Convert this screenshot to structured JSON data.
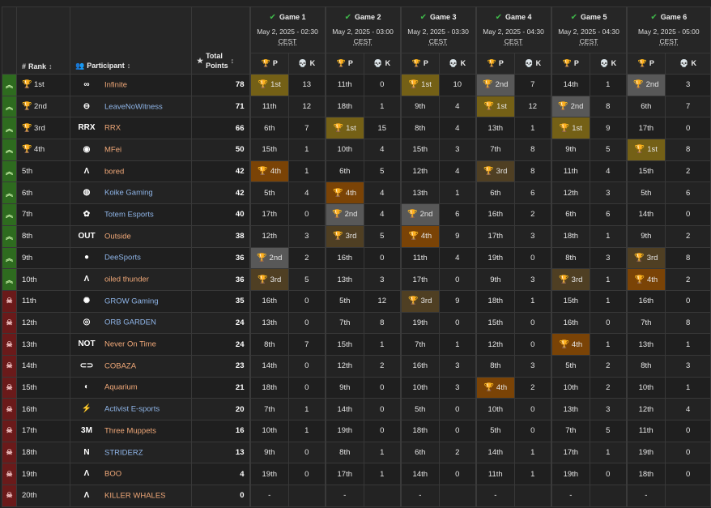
{
  "headers": {
    "rank": "Rank",
    "participant": "Participant",
    "total_points_1": "Total",
    "total_points_2": "Points",
    "p": "P",
    "k": "K"
  },
  "games": [
    {
      "title": "Game 1",
      "date": "May 2, 2025 - 02:30",
      "tz": "CEST"
    },
    {
      "title": "Game 2",
      "date": "May 2, 2025 - 03:00",
      "tz": "CEST"
    },
    {
      "title": "Game 3",
      "date": "May 2, 2025 - 03:30",
      "tz": "CEST"
    },
    {
      "title": "Game 4",
      "date": "May 2, 2025 - 04:30",
      "tz": "CEST"
    },
    {
      "title": "Game 5",
      "date": "May 2, 2025 - 04:30",
      "tz": "CEST"
    },
    {
      "title": "Game 6",
      "date": "May 2, 2025 - 05:00",
      "tz": "CEST"
    }
  ],
  "colors": {
    "gold": "#746016",
    "silver": "#585858",
    "bronze": "#4f3f23",
    "fourth": "#7a4306",
    "advance": "#2e6b1f",
    "eliminated": "#6a1a1a",
    "link_blue": "#8fb5e8",
    "name_orange": "#f0a878"
  },
  "rows": [
    {
      "status": "up",
      "rank": "1st",
      "rank_icon": "gold",
      "name": "Infinite",
      "name_color": "orange",
      "logo": "∞",
      "total": "78",
      "games": [
        [
          "1st",
          "13"
        ],
        [
          "11th",
          "0"
        ],
        [
          "1st",
          "10"
        ],
        [
          "2nd",
          "7"
        ],
        [
          "14th",
          "1"
        ],
        [
          "2nd",
          "3"
        ]
      ]
    },
    {
      "status": "up",
      "rank": "2nd",
      "rank_icon": "silver",
      "name": "LeaveNoWitness",
      "name_color": "blue",
      "logo": "⊖",
      "total": "71",
      "games": [
        [
          "11th",
          "12"
        ],
        [
          "18th",
          "1"
        ],
        [
          "9th",
          "4"
        ],
        [
          "1st",
          "12"
        ],
        [
          "2nd",
          "8"
        ],
        [
          "6th",
          "7"
        ]
      ]
    },
    {
      "status": "up",
      "rank": "3rd",
      "rank_icon": "bronze",
      "name": "RRX",
      "name_color": "orange",
      "logo": "RRX",
      "total": "66",
      "games": [
        [
          "6th",
          "7"
        ],
        [
          "1st",
          "15"
        ],
        [
          "8th",
          "4"
        ],
        [
          "13th",
          "1"
        ],
        [
          "1st",
          "9"
        ],
        [
          "17th",
          "0"
        ]
      ]
    },
    {
      "status": "up",
      "rank": "4th",
      "rank_icon": "fourth",
      "name": "MFei",
      "name_color": "orange",
      "logo": "◉",
      "total": "50",
      "games": [
        [
          "15th",
          "1"
        ],
        [
          "10th",
          "4"
        ],
        [
          "15th",
          "3"
        ],
        [
          "7th",
          "8"
        ],
        [
          "9th",
          "5"
        ],
        [
          "1st",
          "8"
        ]
      ]
    },
    {
      "status": "up",
      "rank": "5th",
      "rank_icon": "",
      "name": "bored",
      "name_color": "orange",
      "logo": "Λ",
      "total": "42",
      "games": [
        [
          "4th",
          "1"
        ],
        [
          "6th",
          "5"
        ],
        [
          "12th",
          "4"
        ],
        [
          "3rd",
          "8"
        ],
        [
          "11th",
          "4"
        ],
        [
          "15th",
          "2"
        ]
      ]
    },
    {
      "status": "up",
      "rank": "6th",
      "rank_icon": "",
      "name": "Koike Gaming",
      "name_color": "blue",
      "logo": "◍",
      "total": "42",
      "games": [
        [
          "5th",
          "4"
        ],
        [
          "4th",
          "4"
        ],
        [
          "13th",
          "1"
        ],
        [
          "6th",
          "6"
        ],
        [
          "12th",
          "3"
        ],
        [
          "5th",
          "6"
        ]
      ]
    },
    {
      "status": "up",
      "rank": "7th",
      "rank_icon": "",
      "name": "Totem Esports",
      "name_color": "blue",
      "logo": "✿",
      "total": "40",
      "games": [
        [
          "17th",
          "0"
        ],
        [
          "2nd",
          "4"
        ],
        [
          "2nd",
          "6"
        ],
        [
          "16th",
          "2"
        ],
        [
          "6th",
          "6"
        ],
        [
          "14th",
          "0"
        ]
      ]
    },
    {
      "status": "up",
      "rank": "8th",
      "rank_icon": "",
      "name": "Outside",
      "name_color": "orange",
      "logo": "OUT",
      "total": "38",
      "games": [
        [
          "12th",
          "3"
        ],
        [
          "3rd",
          "5"
        ],
        [
          "4th",
          "9"
        ],
        [
          "17th",
          "3"
        ],
        [
          "18th",
          "1"
        ],
        [
          "9th",
          "2"
        ]
      ]
    },
    {
      "status": "up",
      "rank": "9th",
      "rank_icon": "",
      "name": "DeeSports",
      "name_color": "blue",
      "logo": "●",
      "total": "36",
      "games": [
        [
          "2nd",
          "2"
        ],
        [
          "16th",
          "0"
        ],
        [
          "11th",
          "4"
        ],
        [
          "19th",
          "0"
        ],
        [
          "8th",
          "3"
        ],
        [
          "3rd",
          "8"
        ]
      ]
    },
    {
      "status": "up",
      "rank": "10th",
      "rank_icon": "",
      "name": "oiled thunder",
      "name_color": "orange",
      "logo": "Λ",
      "total": "36",
      "games": [
        [
          "3rd",
          "5"
        ],
        [
          "13th",
          "3"
        ],
        [
          "17th",
          "0"
        ],
        [
          "9th",
          "3"
        ],
        [
          "3rd",
          "1"
        ],
        [
          "4th",
          "2"
        ]
      ]
    },
    {
      "status": "down",
      "rank": "11th",
      "rank_icon": "",
      "name": "GROW Gaming",
      "name_color": "blue",
      "logo": "✺",
      "total": "35",
      "games": [
        [
          "16th",
          "0"
        ],
        [
          "5th",
          "12"
        ],
        [
          "3rd",
          "9"
        ],
        [
          "18th",
          "1"
        ],
        [
          "15th",
          "1"
        ],
        [
          "16th",
          "0"
        ]
      ]
    },
    {
      "status": "down",
      "rank": "12th",
      "rank_icon": "",
      "name": "ORB GARDEN",
      "name_color": "blue",
      "logo": "◎",
      "total": "24",
      "games": [
        [
          "13th",
          "0"
        ],
        [
          "7th",
          "8"
        ],
        [
          "19th",
          "0"
        ],
        [
          "15th",
          "0"
        ],
        [
          "16th",
          "0"
        ],
        [
          "7th",
          "8"
        ]
      ]
    },
    {
      "status": "down",
      "rank": "13th",
      "rank_icon": "",
      "name": "Never On Time",
      "name_color": "orange",
      "logo": "NOT",
      "total": "24",
      "games": [
        [
          "8th",
          "7"
        ],
        [
          "15th",
          "1"
        ],
        [
          "7th",
          "1"
        ],
        [
          "12th",
          "0"
        ],
        [
          "4th",
          "1"
        ],
        [
          "13th",
          "1"
        ]
      ]
    },
    {
      "status": "down",
      "rank": "14th",
      "rank_icon": "",
      "name": "COBAZA",
      "name_color": "orange",
      "logo": "⊂⊃",
      "total": "23",
      "games": [
        [
          "14th",
          "0"
        ],
        [
          "12th",
          "2"
        ],
        [
          "16th",
          "3"
        ],
        [
          "8th",
          "3"
        ],
        [
          "5th",
          "2"
        ],
        [
          "8th",
          "3"
        ]
      ]
    },
    {
      "status": "down",
      "rank": "15th",
      "rank_icon": "",
      "name": "Aquarium",
      "name_color": "orange",
      "logo": "◐",
      "total": "21",
      "games": [
        [
          "18th",
          "0"
        ],
        [
          "9th",
          "0"
        ],
        [
          "10th",
          "3"
        ],
        [
          "4th",
          "2"
        ],
        [
          "10th",
          "2"
        ],
        [
          "10th",
          "1"
        ]
      ]
    },
    {
      "status": "down",
      "rank": "16th",
      "rank_icon": "",
      "name": "Activist E-sports",
      "name_color": "blue",
      "logo": "⚡",
      "total": "20",
      "games": [
        [
          "7th",
          "1"
        ],
        [
          "14th",
          "0"
        ],
        [
          "5th",
          "0"
        ],
        [
          "10th",
          "0"
        ],
        [
          "13th",
          "3"
        ],
        [
          "12th",
          "4"
        ]
      ]
    },
    {
      "status": "down",
      "rank": "17th",
      "rank_icon": "",
      "name": "Three Muppets",
      "name_color": "orange",
      "logo": "3M",
      "total": "16",
      "games": [
        [
          "10th",
          "1"
        ],
        [
          "19th",
          "0"
        ],
        [
          "18th",
          "0"
        ],
        [
          "5th",
          "0"
        ],
        [
          "7th",
          "5"
        ],
        [
          "11th",
          "0"
        ]
      ]
    },
    {
      "status": "down",
      "rank": "18th",
      "rank_icon": "",
      "name": "STRIDERZ",
      "name_color": "blue",
      "logo": "Ν",
      "total": "13",
      "games": [
        [
          "9th",
          "0"
        ],
        [
          "8th",
          "1"
        ],
        [
          "6th",
          "2"
        ],
        [
          "14th",
          "1"
        ],
        [
          "17th",
          "1"
        ],
        [
          "19th",
          "0"
        ]
      ]
    },
    {
      "status": "down",
      "rank": "19th",
      "rank_icon": "",
      "name": "BOO",
      "name_color": "orange",
      "logo": "Λ",
      "total": "4",
      "games": [
        [
          "19th",
          "0"
        ],
        [
          "17th",
          "1"
        ],
        [
          "14th",
          "0"
        ],
        [
          "11th",
          "1"
        ],
        [
          "19th",
          "0"
        ],
        [
          "18th",
          "0"
        ]
      ]
    },
    {
      "status": "down",
      "rank": "20th",
      "rank_icon": "",
      "name": "KILLER WHALES",
      "name_color": "orange",
      "logo": "Λ",
      "total": "0",
      "games": [
        [
          "-",
          ""
        ],
        [
          "-",
          ""
        ],
        [
          "-",
          ""
        ],
        [
          "-",
          ""
        ],
        [
          "-",
          ""
        ],
        [
          "-",
          ""
        ]
      ]
    }
  ]
}
